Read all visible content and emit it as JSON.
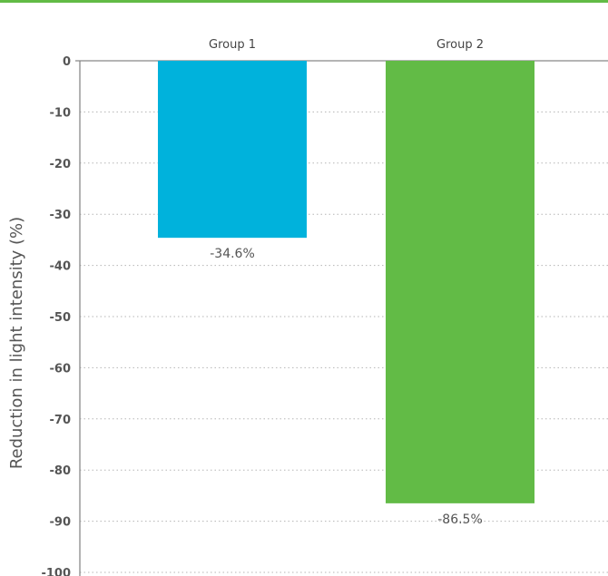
{
  "chart_data": {
    "type": "bar",
    "categories": [
      "Group 1",
      "Group 2"
    ],
    "values": [
      -34.6,
      -86.5
    ],
    "data_labels": [
      "-34.6%",
      "-86.5%"
    ],
    "ylabel": "Reduction in light intensity (%)",
    "xlabel": "",
    "ylim": [
      -100,
      0
    ],
    "yticks": [
      0,
      -10,
      -20,
      -30,
      -40,
      -50,
      -60,
      -70,
      -80,
      -90,
      -100
    ],
    "ytick_labels": [
      "0",
      "-10",
      "-20",
      "-30",
      "-40",
      "-50",
      "-60",
      "-70",
      "-80",
      "-90",
      "-100"
    ],
    "category_axis_position": "top",
    "grid": "horizontal dotted",
    "colors": [
      "#00b2dc",
      "#62bb46"
    ],
    "accent_top_bar_color": "#62bb46"
  }
}
